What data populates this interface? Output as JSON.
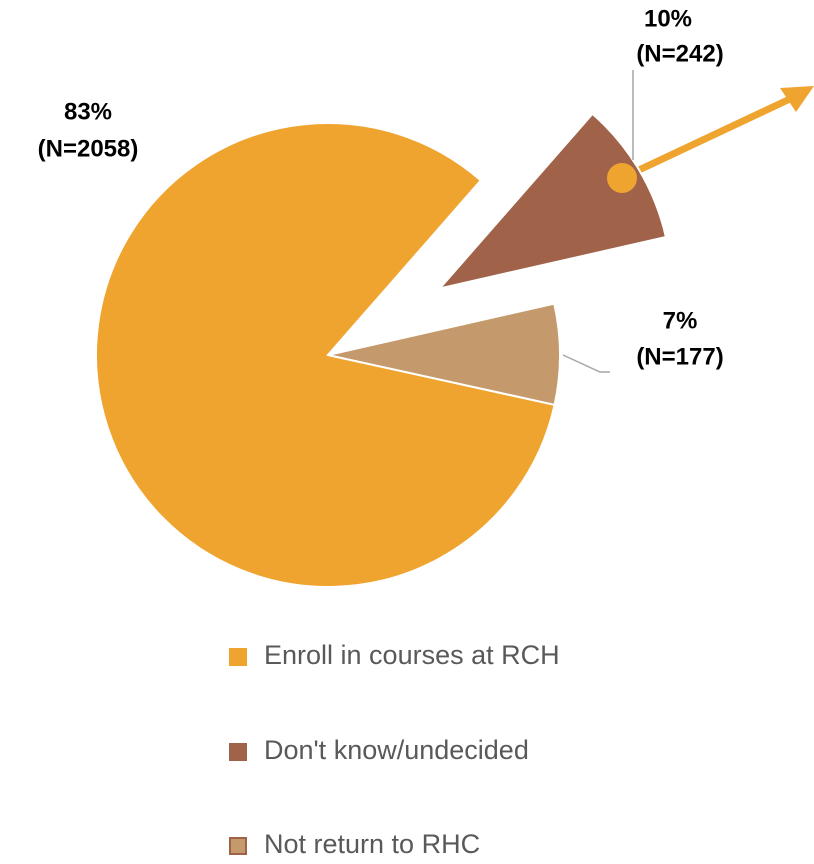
{
  "chart_data": {
    "type": "pie",
    "categories": [
      "Enroll in courses at RCH",
      "Don't know/undecided",
      "Not return to RHC"
    ],
    "values": [
      83,
      10,
      7
    ],
    "value_labels": [
      "83%",
      "10%",
      "7%"
    ],
    "count_labels": [
      "(N=2058)",
      "(N=242)",
      "(N=177)"
    ],
    "colors": [
      "#f0a430",
      "#a0634a",
      "#c49a6c"
    ],
    "exploded": [
      false,
      true,
      false
    ],
    "legend": "bottom"
  }
}
